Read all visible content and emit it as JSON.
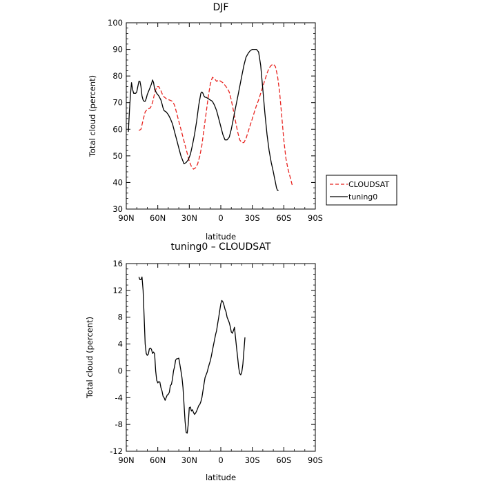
{
  "chart_data": [
    {
      "type": "line",
      "title": "DJF",
      "xlabel": "latitude",
      "ylabel": "Total cloud (percent)",
      "xlim": [
        -90,
        90
      ],
      "ylim": [
        30,
        100
      ],
      "xticks": [
        {
          "value": -90,
          "label": "90N"
        },
        {
          "value": -60,
          "label": "60N"
        },
        {
          "value": -30,
          "label": "30N"
        },
        {
          "value": 0,
          "label": "0"
        },
        {
          "value": 30,
          "label": "30S"
        },
        {
          "value": 60,
          "label": "60S"
        },
        {
          "value": 90,
          "label": "90S"
        }
      ],
      "yticks": [
        30,
        40,
        50,
        60,
        70,
        80,
        90,
        100
      ],
      "legend": {
        "placement": "outside-right"
      },
      "series": [
        {
          "name": "CLOUDSAT",
          "color": "#e8231f",
          "dash": "dashed",
          "points": [
            [
              -78,
              59.5
            ],
            [
              -76,
              60
            ],
            [
              -74,
              63.5
            ],
            [
              -72,
              66.5
            ],
            [
              -70,
              67.5
            ],
            [
              -67,
              68
            ],
            [
              -65,
              70
            ],
            [
              -63,
              73.5
            ],
            [
              -61,
              76
            ],
            [
              -59,
              76
            ],
            [
              -57,
              74.5
            ],
            [
              -55,
              72.5
            ],
            [
              -52,
              71.5
            ],
            [
              -49,
              71
            ],
            [
              -46,
              70.5
            ],
            [
              -44,
              69
            ],
            [
              -42,
              66
            ],
            [
              -40,
              63
            ],
            [
              -38,
              60
            ],
            [
              -36,
              57
            ],
            [
              -34,
              54
            ],
            [
              -32,
              51
            ],
            [
              -30,
              48
            ],
            [
              -28,
              46
            ],
            [
              -26,
              45
            ],
            [
              -24,
              45.5
            ],
            [
              -22,
              47
            ],
            [
              -20,
              50
            ],
            [
              -18,
              54
            ],
            [
              -16,
              60
            ],
            [
              -14,
              66
            ],
            [
              -12,
              72
            ],
            [
              -10,
              77
            ],
            [
              -8,
              79.5
            ],
            [
              -6,
              79
            ],
            [
              -4,
              78
            ],
            [
              -2,
              78.5
            ],
            [
              0,
              78
            ],
            [
              2,
              77.5
            ],
            [
              4,
              76.5
            ],
            [
              6,
              75.5
            ],
            [
              8,
              74
            ],
            [
              10,
              71
            ],
            [
              12,
              67
            ],
            [
              14,
              63
            ],
            [
              16,
              59
            ],
            [
              18,
              56
            ],
            [
              20,
              55
            ],
            [
              22,
              55
            ],
            [
              24,
              56.5
            ],
            [
              26,
              59
            ],
            [
              28,
              61.5
            ],
            [
              30,
              64
            ],
            [
              32,
              66.5
            ],
            [
              34,
              69
            ],
            [
              36,
              71
            ],
            [
              38,
              73.5
            ],
            [
              40,
              76
            ],
            [
              42,
              78.5
            ],
            [
              44,
              81
            ],
            [
              46,
              83
            ],
            [
              48,
              84
            ],
            [
              50,
              84.5
            ],
            [
              52,
              83.5
            ],
            [
              54,
              80
            ],
            [
              56,
              74
            ],
            [
              58,
              65
            ],
            [
              60,
              56
            ],
            [
              62,
              49
            ],
            [
              64,
              45
            ],
            [
              66,
              42
            ],
            [
              68,
              39
            ]
          ]
        },
        {
          "name": "tuning0",
          "color": "#000000",
          "dash": "solid",
          "points": [
            [
              -88,
              59
            ],
            [
              -87,
              67
            ],
            [
              -86,
              73
            ],
            [
              -85,
              77.5
            ],
            [
              -84,
              75
            ],
            [
              -83,
              73.5
            ],
            [
              -81,
              73.5
            ],
            [
              -80,
              74
            ],
            [
              -79,
              76
            ],
            [
              -78,
              78
            ],
            [
              -77,
              78
            ],
            [
              -76,
              76
            ],
            [
              -75,
              72.5
            ],
            [
              -74,
              71
            ],
            [
              -73,
              70.5
            ],
            [
              -72,
              70.5
            ],
            [
              -71,
              71.5
            ],
            [
              -70,
              73
            ],
            [
              -68,
              75
            ],
            [
              -66,
              77
            ],
            [
              -65,
              78.5
            ],
            [
              -64,
              77.5
            ],
            [
              -63,
              75
            ],
            [
              -61,
              73.5
            ],
            [
              -59,
              72.5
            ],
            [
              -57,
              71
            ],
            [
              -56,
              69.5
            ],
            [
              -55,
              68
            ],
            [
              -54,
              67
            ],
            [
              -52,
              66.5
            ],
            [
              -50,
              65.5
            ],
            [
              -48,
              64
            ],
            [
              -46,
              62
            ],
            [
              -44,
              59
            ],
            [
              -42,
              56
            ],
            [
              -40,
              53
            ],
            [
              -38,
              50
            ],
            [
              -36,
              48
            ],
            [
              -35,
              47
            ],
            [
              -33,
              47.5
            ],
            [
              -31,
              48.5
            ],
            [
              -29,
              50.5
            ],
            [
              -27,
              54
            ],
            [
              -25,
              58
            ],
            [
              -23,
              63
            ],
            [
              -21,
              69
            ],
            [
              -19,
              73.5
            ],
            [
              -18,
              74
            ],
            [
              -17,
              73.5
            ],
            [
              -16,
              72.5
            ],
            [
              -15,
              72
            ],
            [
              -14,
              72
            ],
            [
              -12,
              71.5
            ],
            [
              -10,
              71
            ],
            [
              -8,
              70.5
            ],
            [
              -6,
              69
            ],
            [
              -4,
              67
            ],
            [
              -2,
              64
            ],
            [
              0,
              61
            ],
            [
              2,
              58
            ],
            [
              4,
              56
            ],
            [
              6,
              56
            ],
            [
              8,
              57
            ],
            [
              10,
              60
            ],
            [
              12,
              64
            ],
            [
              14,
              68
            ],
            [
              16,
              72
            ],
            [
              18,
              76
            ],
            [
              20,
              80
            ],
            [
              22,
              84
            ],
            [
              24,
              87
            ],
            [
              26,
              88.5
            ],
            [
              28,
              89.5
            ],
            [
              30,
              90
            ],
            [
              32,
              90
            ],
            [
              34,
              90
            ],
            [
              36,
              89
            ],
            [
              38,
              84
            ],
            [
              40,
              75
            ],
            [
              42,
              66
            ],
            [
              44,
              58
            ],
            [
              46,
              52
            ],
            [
              48,
              47.5
            ],
            [
              50,
              44
            ],
            [
              51,
              42
            ],
            [
              52,
              40
            ],
            [
              53,
              38
            ],
            [
              54,
              37
            ],
            [
              55,
              37
            ]
          ]
        }
      ]
    },
    {
      "type": "line",
      "title": "tuning0 – CLOUDSAT",
      "xlabel": "latitude",
      "ylabel": "Total cloud (percent)",
      "xlim": [
        -90,
        90
      ],
      "ylim": [
        -12,
        16
      ],
      "xticks": [
        {
          "value": -90,
          "label": "90N"
        },
        {
          "value": -60,
          "label": "60N"
        },
        {
          "value": -30,
          "label": "30N"
        },
        {
          "value": 0,
          "label": "0"
        },
        {
          "value": 30,
          "label": "30S"
        },
        {
          "value": 60,
          "label": "60S"
        },
        {
          "value": 90,
          "label": "90S"
        }
      ],
      "yticks": [
        -12,
        -8,
        -4,
        0,
        4,
        8,
        12,
        16
      ],
      "series": [
        {
          "color": "#000000",
          "dash": "solid",
          "points": [
            [
              -78,
              14
            ],
            [
              -77,
              13.6
            ],
            [
              -76,
              13.6
            ],
            [
              -75,
              14
            ],
            [
              -74,
              12
            ],
            [
              -73,
              8
            ],
            [
              -72,
              4
            ],
            [
              -71,
              2.6
            ],
            [
              -70,
              2.3
            ],
            [
              -69,
              2.5
            ],
            [
              -68,
              3.3
            ],
            [
              -67,
              3.4
            ],
            [
              -66,
              3.2
            ],
            [
              -65,
              2.6
            ],
            [
              -64,
              2.8
            ],
            [
              -63,
              2.5
            ],
            [
              -62,
              0
            ],
            [
              -61,
              -1.4
            ],
            [
              -60,
              -1.8
            ],
            [
              -59,
              -1.6
            ],
            [
              -58,
              -1.7
            ],
            [
              -57,
              -2.5
            ],
            [
              -56,
              -3
            ],
            [
              -55,
              -3.8
            ],
            [
              -54,
              -4
            ],
            [
              -53,
              -4.4
            ],
            [
              -52,
              -4
            ],
            [
              -51,
              -3.6
            ],
            [
              -50,
              -3.5
            ],
            [
              -49,
              -3.2
            ],
            [
              -48,
              -2.2
            ],
            [
              -47,
              -2
            ],
            [
              -46,
              -1.2
            ],
            [
              -45,
              0
            ],
            [
              -44,
              0.6
            ],
            [
              -43,
              1.6
            ],
            [
              -42,
              1.8
            ],
            [
              -41,
              1.8
            ],
            [
              -40,
              1.9
            ],
            [
              -39,
              1
            ],
            [
              -38,
              0
            ],
            [
              -37,
              -1
            ],
            [
              -36,
              -2.5
            ],
            [
              -35,
              -5
            ],
            [
              -34,
              -7.5
            ],
            [
              -33,
              -9.2
            ],
            [
              -32,
              -9.3
            ],
            [
              -31,
              -8
            ],
            [
              -30,
              -5.5
            ],
            [
              -29,
              -5.4
            ],
            [
              -28,
              -6
            ],
            [
              -27,
              -5.8
            ],
            [
              -26,
              -6.2
            ],
            [
              -25,
              -6.5
            ],
            [
              -24,
              -6.3
            ],
            [
              -23,
              -6
            ],
            [
              -22,
              -5.6
            ],
            [
              -21,
              -5.2
            ],
            [
              -20,
              -5
            ],
            [
              -19,
              -4.6
            ],
            [
              -18,
              -4
            ],
            [
              -17,
              -3
            ],
            [
              -16,
              -2
            ],
            [
              -15,
              -1
            ],
            [
              -14,
              -0.6
            ],
            [
              -13,
              -0.2
            ],
            [
              -12,
              0.4
            ],
            [
              -11,
              1
            ],
            [
              -10,
              1.5
            ],
            [
              -9,
              2.2
            ],
            [
              -8,
              3
            ],
            [
              -7,
              3.8
            ],
            [
              -6,
              4.6
            ],
            [
              -5,
              5.4
            ],
            [
              -4,
              6
            ],
            [
              -3,
              7
            ],
            [
              -2,
              8
            ],
            [
              -1,
              9
            ],
            [
              0,
              10
            ],
            [
              1,
              10.5
            ],
            [
              2,
              10.3
            ],
            [
              3,
              9.8
            ],
            [
              4,
              9.2
            ],
            [
              5,
              8.8
            ],
            [
              6,
              8
            ],
            [
              7,
              7.6
            ],
            [
              8,
              7.2
            ],
            [
              9,
              6.6
            ],
            [
              10,
              5.8
            ],
            [
              11,
              5.6
            ],
            [
              12,
              6
            ],
            [
              13,
              6.5
            ],
            [
              14,
              5
            ],
            [
              15,
              3.5
            ],
            [
              16,
              2
            ],
            [
              17,
              0.5
            ],
            [
              18,
              -0.4
            ],
            [
              19,
              -0.6
            ],
            [
              20,
              -0.2
            ],
            [
              21,
              1
            ],
            [
              22,
              3
            ],
            [
              23,
              5
            ]
          ]
        }
      ]
    }
  ]
}
